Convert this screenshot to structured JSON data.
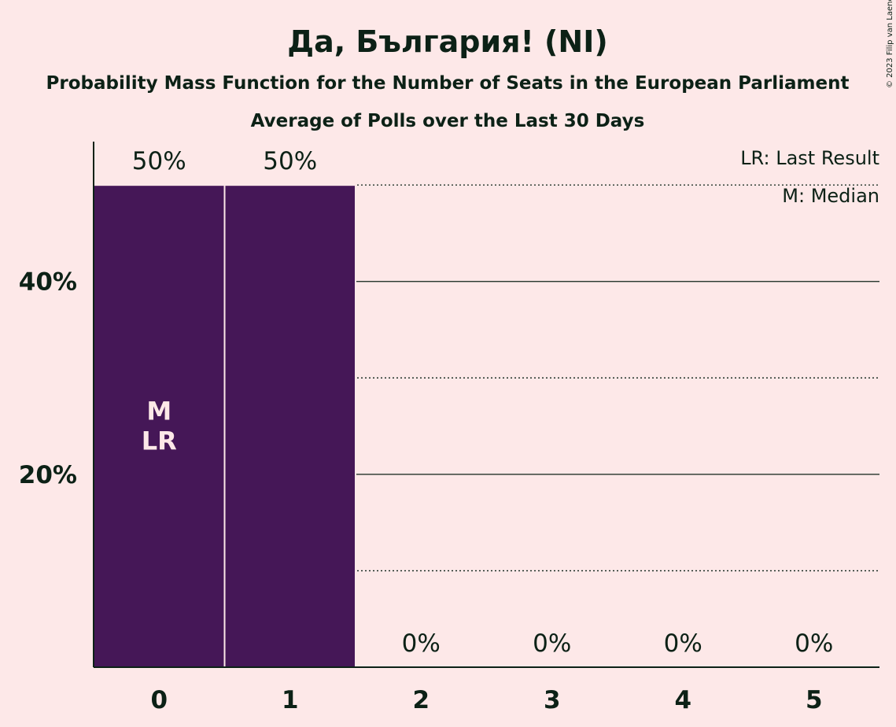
{
  "chart_data": {
    "type": "bar",
    "title": "Да, България! (NI)",
    "subtitle": "Probability Mass Function for the Number of Seats in the European Parliament",
    "subtitle2": "Average of Polls over the Last 30 Days",
    "categories": [
      "0",
      "1",
      "2",
      "3",
      "4",
      "5"
    ],
    "values": [
      50,
      50,
      0,
      0,
      0,
      0
    ],
    "value_labels": [
      "50%",
      "50%",
      "0%",
      "0%",
      "0%",
      "0%"
    ],
    "ylim": [
      0,
      54.5
    ],
    "y_ticks": [
      {
        "value": 20,
        "label": "20%",
        "style": "solid"
      },
      {
        "value": 40,
        "label": "40%",
        "style": "solid"
      }
    ],
    "minor_gridlines": [
      10,
      30,
      50
    ],
    "bar_color": "#451757",
    "median_index": 0,
    "last_result_index": 0,
    "median_marker": "M",
    "last_result_marker": "LR",
    "legend": [
      "LR: Last Result",
      "M: Median"
    ],
    "legend_position": "top-right",
    "copyright": "© 2023 Filip van Laenen"
  }
}
